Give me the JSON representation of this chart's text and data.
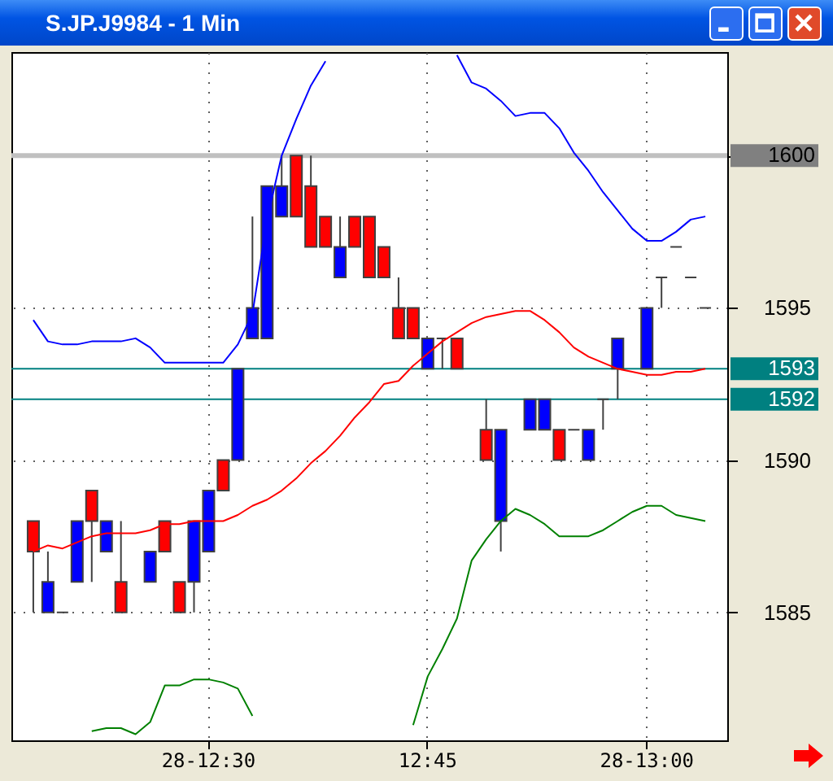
{
  "chart_data": {
    "type": "candlestick",
    "title": "S.JP.J9984 - 1 Min",
    "categories": [
      null,
      null,
      null,
      null,
      null,
      null,
      null,
      null,
      null,
      null,
      null,
      null,
      "28-12:30",
      null,
      null,
      null,
      null,
      null,
      null,
      null,
      null,
      null,
      null,
      null,
      null,
      null,
      null,
      "12:45",
      null,
      null,
      null,
      null,
      null,
      null,
      null,
      null,
      null,
      null,
      null,
      null,
      null,
      null,
      "28-13:00",
      null,
      null,
      null,
      null
    ],
    "ylim": [
      1580.8,
      1603.4
    ],
    "yticks": [
      1585,
      1590,
      1595,
      {
        "value": 1600,
        "label": null
      }
    ],
    "grid": true,
    "ohlc": [
      [
        1588,
        1588,
        1585,
        1587
      ],
      [
        1585,
        1587,
        1585,
        1586
      ],
      [
        1585,
        1585,
        1585,
        1585
      ],
      [
        1586,
        1588,
        1586,
        1588
      ],
      [
        1589,
        1589,
        1586,
        1588
      ],
      [
        1587,
        1588,
        1587,
        1588
      ],
      [
        1586,
        1588,
        1585,
        1585
      ],
      null,
      [
        1586,
        1587,
        1586,
        1587
      ],
      [
        1588,
        1588,
        1587,
        1587
      ],
      [
        1586,
        1586,
        1585,
        1585
      ],
      [
        1586,
        1588,
        1585,
        1588
      ],
      [
        1587,
        1589,
        1587,
        1589
      ],
      [
        1590,
        1590,
        1589,
        1589
      ],
      [
        1590,
        1593,
        1590,
        1593
      ],
      [
        1594,
        1598,
        1594,
        1595
      ],
      [
        1594,
        1599,
        1594,
        1599
      ],
      [
        1598,
        1600,
        1598,
        1599
      ],
      [
        1600,
        1600,
        1598,
        1598
      ],
      [
        1599,
        1600,
        1597,
        1597
      ],
      [
        1598,
        1598,
        1597,
        1597
      ],
      [
        1596,
        1598,
        1596,
        1597
      ],
      [
        1598,
        1598,
        1597,
        1597
      ],
      [
        1598,
        1598,
        1596,
        1596
      ],
      [
        1597,
        1597,
        1596,
        1596
      ],
      [
        1595,
        1596,
        1594,
        1594
      ],
      [
        1595,
        1595,
        1594,
        1594
      ],
      [
        1593,
        1594,
        1593,
        1594
      ],
      [
        1594,
        1594,
        1593,
        1594
      ],
      [
        1594,
        1594,
        1593,
        1593
      ],
      null,
      [
        1591,
        1592,
        1590,
        1590
      ],
      [
        1588,
        1591,
        1587,
        1591
      ],
      null,
      [
        1591,
        1592,
        1591,
        1592
      ],
      [
        1591,
        1592,
        1591,
        1592
      ],
      [
        1591,
        1591,
        1590,
        1590
      ],
      [
        1591,
        1591,
        1591,
        1591
      ],
      [
        1590,
        1591,
        1590,
        1591
      ],
      [
        1592,
        1592,
        1591,
        1592
      ],
      [
        1593,
        1594,
        1592,
        1594
      ],
      null,
      [
        1593,
        1595,
        1593,
        1595
      ],
      [
        1596,
        1596,
        1595,
        1596
      ],
      [
        1597,
        1597,
        1597,
        1597
      ],
      [
        1596,
        1596,
        1596,
        1596
      ],
      [
        1595,
        1595,
        1595,
        1595
      ]
    ],
    "colors": [
      "#ff0000",
      "#0000ff",
      "#404040",
      "#0000ff",
      "#ff0000",
      "#0000ff",
      "#ff0000",
      null,
      "#0000ff",
      "#ff0000",
      "#ff0000",
      "#0000ff",
      "#0000ff",
      "#ff0000",
      "#0000ff",
      "#0000ff",
      "#0000ff",
      "#0000ff",
      "#ff0000",
      "#ff0000",
      "#ff0000",
      "#0000ff",
      "#ff0000",
      "#ff0000",
      "#ff0000",
      "#ff0000",
      "#ff0000",
      "#0000ff",
      "#404040",
      "#ff0000",
      null,
      "#ff0000",
      "#0000ff",
      null,
      "#0000ff",
      "#0000ff",
      "#ff0000",
      "#404040",
      "#0000ff",
      "#404040",
      "#0000ff",
      null,
      "#0000ff",
      "#404040",
      "#404040",
      "#404040",
      "#404040"
    ],
    "series": [
      {
        "type": "line",
        "color": "#0000ff",
        "values": [
          1594.6,
          1593.9,
          1593.8,
          1593.8,
          1593.9,
          1593.9,
          1593.9,
          1594.0,
          1593.7,
          1593.2,
          1593.2,
          1593.2,
          1593.2,
          1593.2,
          1593.8,
          1594.8,
          1597.9,
          1600.0,
          1601.2,
          1602.3,
          1603.1,
          null,
          null,
          null,
          null,
          null,
          null,
          null,
          null,
          1603.3,
          1602.4,
          1602.2,
          1601.8,
          1601.3,
          1601.4,
          1601.4,
          1600.9,
          1600.1,
          1599.5,
          1598.8,
          1598.2,
          1597.6,
          1597.2,
          1597.2,
          1597.5,
          1597.9,
          1598.0
        ]
      },
      {
        "type": "line",
        "color": "#ff0000",
        "values": [
          1587.0,
          1587.2,
          1587.1,
          1587.3,
          1587.5,
          1587.6,
          1587.6,
          1587.6,
          1587.7,
          1587.9,
          1587.9,
          1588.0,
          1588.0,
          1588.0,
          1588.2,
          1588.5,
          1588.7,
          1589.0,
          1589.4,
          1589.9,
          1590.3,
          1590.8,
          1591.4,
          1591.9,
          1592.5,
          1592.6,
          1593.1,
          1593.5,
          1593.9,
          1594.2,
          1594.5,
          1594.7,
          1594.8,
          1594.9,
          1594.9,
          1594.6,
          1594.2,
          1593.7,
          1593.4,
          1593.2,
          1593.0,
          1592.9,
          1592.8,
          1592.8,
          1592.9,
          1592.9,
          1593.0
        ]
      },
      {
        "type": "line",
        "color": "#008000",
        "values": [
          null,
          null,
          null,
          null,
          1581.1,
          1581.2,
          1581.2,
          1581.0,
          1581.4,
          1582.6,
          1582.6,
          1582.8,
          1582.8,
          1582.7,
          1582.5,
          1581.6,
          null,
          null,
          null,
          null,
          null,
          null,
          null,
          null,
          null,
          null,
          1581.3,
          1582.9,
          1583.8,
          1584.8,
          1586.7,
          1587.4,
          1588.0,
          1588.4,
          1588.2,
          1587.9,
          1587.5,
          1587.5,
          1587.5,
          1587.7,
          1588.0,
          1588.3,
          1588.5,
          1588.5,
          1588.2,
          1588.1,
          1588.0
        ]
      }
    ],
    "ref_lines": [
      {
        "axis": "y",
        "value": 1600,
        "label": "1600",
        "color": "#c0c0c0"
      },
      {
        "axis": "y",
        "value": 1593,
        "label": "1593",
        "color": "#008080"
      },
      {
        "axis": "y",
        "value": 1592,
        "label": "1592",
        "color": "#008080"
      }
    ]
  }
}
